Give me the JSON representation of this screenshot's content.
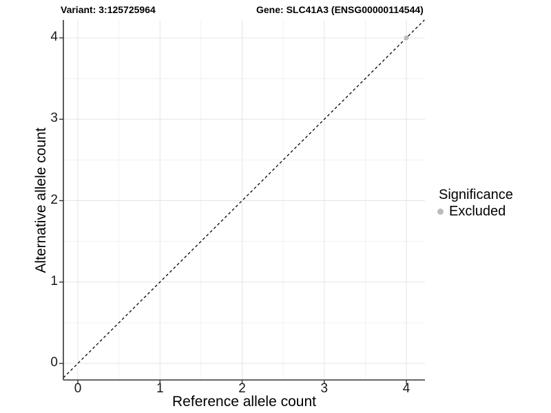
{
  "titles": {
    "left": "Variant: 3:125725964",
    "right": "Gene: SLC41A3 (ENSG00000114544)"
  },
  "axes": {
    "x": {
      "label": "Reference allele count"
    },
    "y": {
      "label": "Alternative allele count"
    }
  },
  "legend": {
    "title": "Significance",
    "items": [
      {
        "label": "Excluded",
        "color": "#bcbcbc"
      }
    ]
  },
  "chart_data": {
    "type": "scatter",
    "title_left": "Variant: 3:125725964",
    "title_right": "Gene: SLC41A3 (ENSG00000114544)",
    "xlabel": "Reference allele count",
    "ylabel": "Alternative allele count",
    "x_ticks": [
      0,
      1,
      2,
      3,
      4
    ],
    "y_ticks": [
      0,
      1,
      2,
      3,
      4
    ],
    "xlim": [
      -0.176,
      4.226
    ],
    "ylim": [
      -0.203,
      4.22
    ],
    "grid": "major ticks plus minor gridlines at 0.5 steps, light gray on white",
    "legend_position": "right-middle",
    "series": [
      {
        "name": "Excluded",
        "color": "#bcbcbc",
        "marker": "circle",
        "points": [
          {
            "x": 4,
            "y": 4
          }
        ]
      }
    ],
    "reference_line": {
      "style": "dashed",
      "color": "#000000",
      "slope": 1,
      "intercept": 0
    }
  },
  "colors": {
    "background": "#ffffff",
    "grid_major": "#e4e4e4",
    "grid_minor": "#f1f1f1",
    "axis_line": "#333333",
    "tick_text": "#1a1a1a",
    "title_text": "#000000",
    "excluded": "#bcbcbc"
  }
}
